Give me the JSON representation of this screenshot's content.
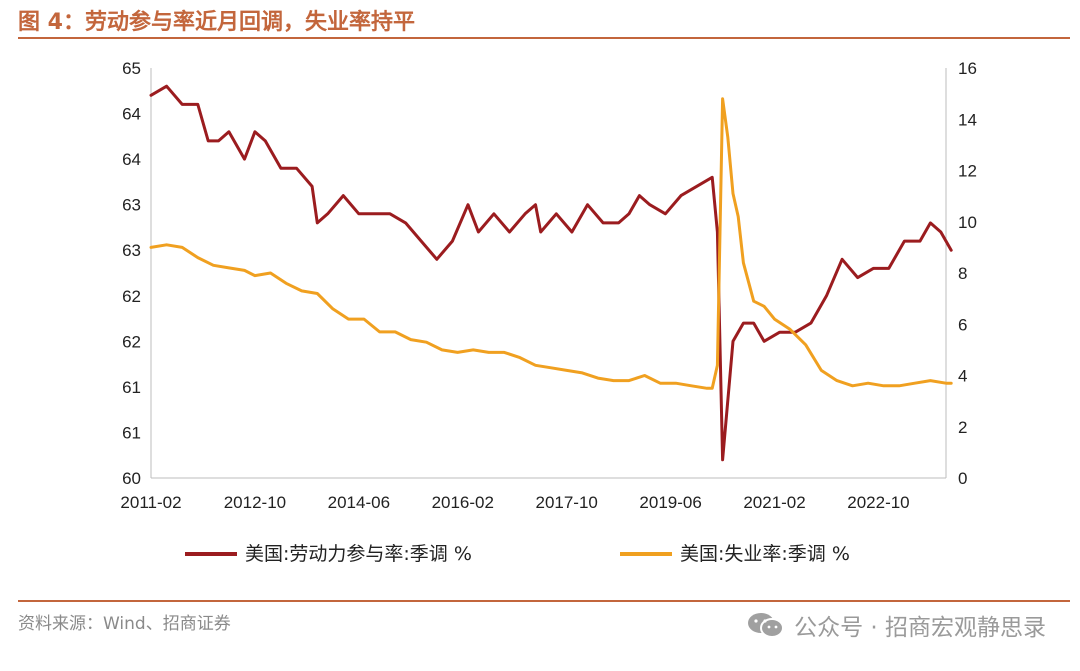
{
  "figure": {
    "title": "图 4：劳动参与率近月回调，失业率持平",
    "source": "资料来源：Wind、招商证券",
    "watermark": "公众号 · 招商宏观静思录"
  },
  "chart_data": {
    "type": "line",
    "title": "",
    "x_tick_labels": [
      "2011-02",
      "2012-10",
      "2014-06",
      "2016-02",
      "2017-10",
      "2019-06",
      "2021-02",
      "2022-10"
    ],
    "left_axis": {
      "tick_labels": [
        "60",
        "61",
        "61",
        "62",
        "62",
        "63",
        "63",
        "64",
        "64",
        "65"
      ],
      "ylim": [
        60.0,
        64.5
      ]
    },
    "right_axis": {
      "tick_labels": [
        "0",
        "2",
        "4",
        "6",
        "8",
        "10",
        "12",
        "14",
        "16"
      ],
      "ylim": [
        0,
        16
      ]
    },
    "grid": false,
    "legend_position": "bottom",
    "series": [
      {
        "name": "美国:劳动力参与率:季调 %",
        "axis": "left",
        "color": "#9b1c1f",
        "points": [
          [
            "2011-02",
            64.2
          ],
          [
            "2011-05",
            64.3
          ],
          [
            "2011-08",
            64.1
          ],
          [
            "2011-11",
            64.1
          ],
          [
            "2012-01",
            63.7
          ],
          [
            "2012-03",
            63.7
          ],
          [
            "2012-05",
            63.8
          ],
          [
            "2012-08",
            63.5
          ],
          [
            "2012-10",
            63.8
          ],
          [
            "2012-12",
            63.7
          ],
          [
            "2013-03",
            63.4
          ],
          [
            "2013-06",
            63.4
          ],
          [
            "2013-09",
            63.2
          ],
          [
            "2013-10",
            62.8
          ],
          [
            "2013-12",
            62.9
          ],
          [
            "2014-03",
            63.1
          ],
          [
            "2014-06",
            62.9
          ],
          [
            "2014-09",
            62.9
          ],
          [
            "2014-12",
            62.9
          ],
          [
            "2015-03",
            62.8
          ],
          [
            "2015-06",
            62.6
          ],
          [
            "2015-09",
            62.4
          ],
          [
            "2015-12",
            62.6
          ],
          [
            "2016-03",
            63.0
          ],
          [
            "2016-05",
            62.7
          ],
          [
            "2016-08",
            62.9
          ],
          [
            "2016-11",
            62.7
          ],
          [
            "2017-02",
            62.9
          ],
          [
            "2017-04",
            63.0
          ],
          [
            "2017-05",
            62.7
          ],
          [
            "2017-08",
            62.9
          ],
          [
            "2017-11",
            62.7
          ],
          [
            "2018-02",
            63.0
          ],
          [
            "2018-05",
            62.8
          ],
          [
            "2018-08",
            62.8
          ],
          [
            "2018-10",
            62.9
          ],
          [
            "2018-12",
            63.1
          ],
          [
            "2019-02",
            63.0
          ],
          [
            "2019-05",
            62.9
          ],
          [
            "2019-08",
            63.1
          ],
          [
            "2019-11",
            63.2
          ],
          [
            "2020-02",
            63.3
          ],
          [
            "2020-03",
            62.7
          ],
          [
            "2020-04",
            60.2
          ],
          [
            "2020-06",
            61.5
          ],
          [
            "2020-08",
            61.7
          ],
          [
            "2020-10",
            61.7
          ],
          [
            "2020-12",
            61.5
          ],
          [
            "2021-03",
            61.6
          ],
          [
            "2021-06",
            61.6
          ],
          [
            "2021-09",
            61.7
          ],
          [
            "2021-12",
            62.0
          ],
          [
            "2022-03",
            62.4
          ],
          [
            "2022-06",
            62.2
          ],
          [
            "2022-09",
            62.3
          ],
          [
            "2022-12",
            62.3
          ],
          [
            "2023-03",
            62.6
          ],
          [
            "2023-06",
            62.6
          ],
          [
            "2023-08",
            62.8
          ],
          [
            "2023-10",
            62.7
          ],
          [
            "2023-12",
            62.5
          ]
        ]
      },
      {
        "name": "美国:失业率:季调 %",
        "axis": "right",
        "color": "#f0a020",
        "points": [
          [
            "2011-02",
            9.0
          ],
          [
            "2011-05",
            9.1
          ],
          [
            "2011-08",
            9.0
          ],
          [
            "2011-11",
            8.6
          ],
          [
            "2012-02",
            8.3
          ],
          [
            "2012-05",
            8.2
          ],
          [
            "2012-08",
            8.1
          ],
          [
            "2012-10",
            7.9
          ],
          [
            "2013-01",
            8.0
          ],
          [
            "2013-04",
            7.6
          ],
          [
            "2013-07",
            7.3
          ],
          [
            "2013-10",
            7.2
          ],
          [
            "2014-01",
            6.6
          ],
          [
            "2014-04",
            6.2
          ],
          [
            "2014-07",
            6.2
          ],
          [
            "2014-10",
            5.7
          ],
          [
            "2015-01",
            5.7
          ],
          [
            "2015-04",
            5.4
          ],
          [
            "2015-07",
            5.3
          ],
          [
            "2015-10",
            5.0
          ],
          [
            "2016-01",
            4.9
          ],
          [
            "2016-04",
            5.0
          ],
          [
            "2016-07",
            4.9
          ],
          [
            "2016-10",
            4.9
          ],
          [
            "2017-01",
            4.7
          ],
          [
            "2017-04",
            4.4
          ],
          [
            "2017-07",
            4.3
          ],
          [
            "2017-10",
            4.2
          ],
          [
            "2018-01",
            4.1
          ],
          [
            "2018-04",
            3.9
          ],
          [
            "2018-07",
            3.8
          ],
          [
            "2018-10",
            3.8
          ],
          [
            "2019-01",
            4.0
          ],
          [
            "2019-04",
            3.7
          ],
          [
            "2019-07",
            3.7
          ],
          [
            "2019-10",
            3.6
          ],
          [
            "2020-01",
            3.5
          ],
          [
            "2020-02",
            3.5
          ],
          [
            "2020-03",
            4.4
          ],
          [
            "2020-04",
            14.8
          ],
          [
            "2020-05",
            13.3
          ],
          [
            "2020-06",
            11.1
          ],
          [
            "2020-07",
            10.2
          ],
          [
            "2020-08",
            8.4
          ],
          [
            "2020-10",
            6.9
          ],
          [
            "2020-12",
            6.7
          ],
          [
            "2021-02",
            6.2
          ],
          [
            "2021-05",
            5.8
          ],
          [
            "2021-08",
            5.2
          ],
          [
            "2021-11",
            4.2
          ],
          [
            "2022-02",
            3.8
          ],
          [
            "2022-05",
            3.6
          ],
          [
            "2022-08",
            3.7
          ],
          [
            "2022-11",
            3.6
          ],
          [
            "2023-02",
            3.6
          ],
          [
            "2023-05",
            3.7
          ],
          [
            "2023-08",
            3.8
          ],
          [
            "2023-11",
            3.7
          ],
          [
            "2023-12",
            3.7
          ]
        ]
      }
    ]
  }
}
